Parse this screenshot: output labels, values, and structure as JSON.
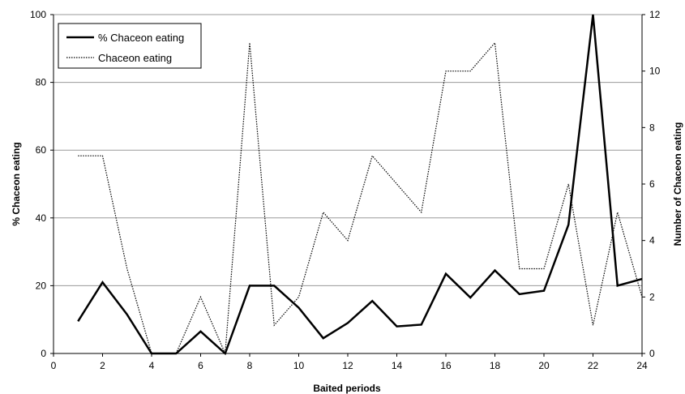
{
  "chart_data": {
    "type": "line",
    "xlabel": "Baited periods",
    "ylabel": "% Chaceon eating",
    "y2label": "Number of Chaceon eating",
    "xlim": [
      0,
      24
    ],
    "ylim": [
      0,
      100
    ],
    "y2lim": [
      0,
      12
    ],
    "xticks": [
      "0",
      "2",
      "4",
      "6",
      "8",
      "10",
      "12",
      "14",
      "16",
      "18",
      "20",
      "22",
      "24"
    ],
    "yticks": [
      "0",
      "20",
      "40",
      "60",
      "80",
      "100"
    ],
    "y2ticks": [
      "0",
      "2",
      "4",
      "6",
      "8",
      "10",
      "12"
    ],
    "grid": "horizontal",
    "legend_position": "top-left",
    "x": [
      1,
      2,
      3,
      4,
      5,
      6,
      7,
      8,
      9,
      10,
      11,
      12,
      13,
      14,
      15,
      16,
      17,
      18,
      19,
      20,
      21,
      22,
      23,
      24
    ],
    "series": [
      {
        "name": "% Chaceon eating",
        "axis": "left",
        "style": "solid",
        "color": "#000000",
        "values": [
          9.5,
          21,
          11.5,
          0,
          0,
          6.5,
          0,
          20,
          20,
          13.5,
          4.5,
          9,
          15.5,
          8,
          8.5,
          23.5,
          16.5,
          24.5,
          17.5,
          18.5,
          38,
          100,
          20,
          22
        ]
      },
      {
        "name": "Chaceon eating",
        "axis": "right",
        "style": "dotted",
        "color": "#000000",
        "values": [
          7,
          7,
          3,
          0,
          0,
          2,
          0,
          11,
          1,
          2,
          5,
          4,
          7,
          6,
          5,
          10,
          10,
          11,
          3,
          3,
          6,
          1,
          5,
          2
        ]
      }
    ]
  }
}
